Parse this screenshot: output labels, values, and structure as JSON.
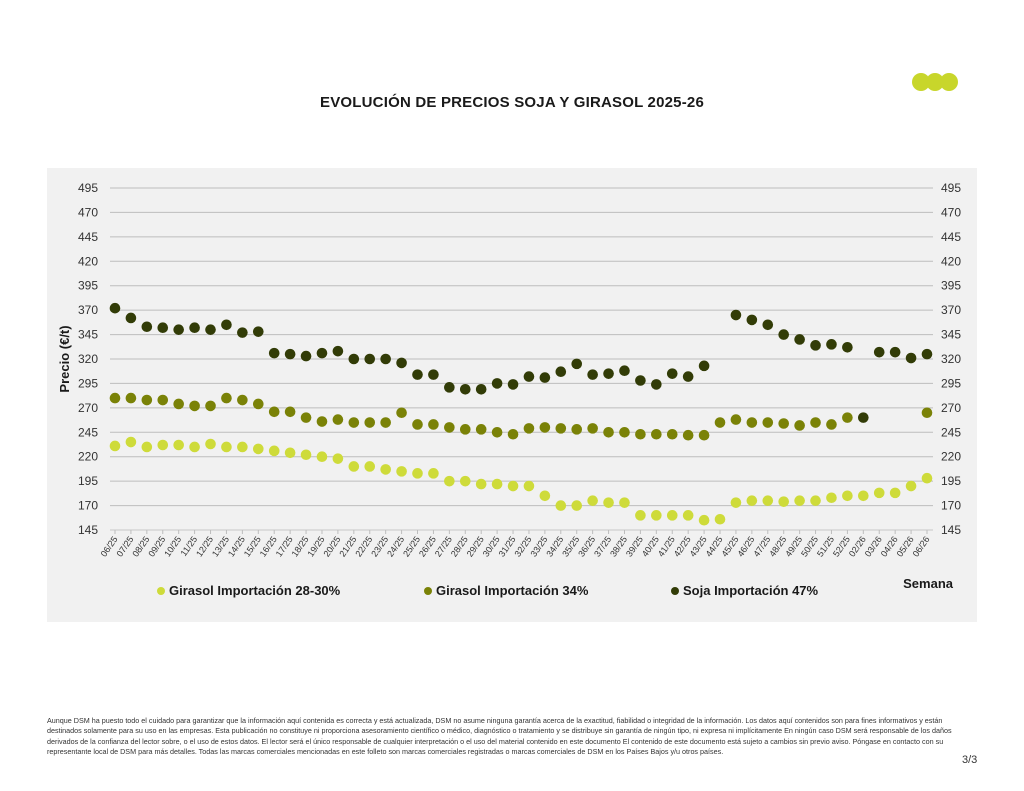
{
  "logo": {
    "name": "DSM logo",
    "color": "#c8d62b"
  },
  "chart_data": {
    "type": "scatter",
    "title": "EVOLUCIÓN DE PRECIOS SOJA Y GIRASOL 2025-26",
    "xlabel": "Semana",
    "ylabel": "Precio (€/t)",
    "ylim": [
      145,
      495
    ],
    "yticks": [
      145,
      170,
      195,
      220,
      245,
      270,
      295,
      320,
      345,
      370,
      395,
      420,
      445,
      470,
      495
    ],
    "grid": true,
    "legend_position": "bottom",
    "categories": [
      "06/25",
      "07/25",
      "08/25",
      "09/25",
      "10/25",
      "11/25",
      "12/25",
      "13/25",
      "14/25",
      "15/25",
      "16/25",
      "17/25",
      "18/25",
      "19/25",
      "20/25",
      "21/25",
      "22/25",
      "23/25",
      "24/25",
      "25/25",
      "26/25",
      "27/25",
      "28/25",
      "29/25",
      "30/25",
      "31/25",
      "32/25",
      "33/25",
      "34/25",
      "35/25",
      "36/25",
      "37/25",
      "38/25",
      "39/25",
      "40/25",
      "41/25",
      "42/25",
      "43/25",
      "44/25",
      "45/25",
      "46/25",
      "47/25",
      "48/25",
      "49/25",
      "50/25",
      "51/25",
      "52/25",
      "02/26",
      "03/26",
      "04/26",
      "05/26",
      "06/26"
    ],
    "series": [
      {
        "name": "Girasol Importación 28-30%",
        "color": "#cedb3a",
        "values": [
          231,
          235,
          230,
          232,
          232,
          230,
          233,
          230,
          230,
          228,
          226,
          224,
          222,
          220,
          218,
          210,
          210,
          207,
          205,
          203,
          203,
          195,
          195,
          192,
          192,
          190,
          190,
          180,
          170,
          170,
          175,
          173,
          173,
          160,
          160,
          160,
          160,
          155,
          156,
          173,
          175,
          175,
          174,
          175,
          175,
          178,
          180,
          180,
          183,
          183,
          190,
          198
        ]
      },
      {
        "name": "Girasol Importación 34%",
        "color": "#7a8207",
        "values": [
          280,
          280,
          278,
          278,
          274,
          272,
          272,
          280,
          278,
          274,
          266,
          266,
          260,
          256,
          258,
          255,
          255,
          255,
          265,
          253,
          253,
          250,
          248,
          248,
          245,
          243,
          249,
          250,
          249,
          248,
          249,
          245,
          245,
          243,
          243,
          243,
          242,
          242,
          255,
          258,
          255,
          255,
          254,
          252,
          255,
          253,
          260,
          null,
          null,
          null,
          null,
          265
        ]
      },
      {
        "name": "Soja Importación 47%",
        "color": "#323c07",
        "values": [
          372,
          362,
          353,
          352,
          350,
          352,
          350,
          355,
          347,
          348,
          326,
          325,
          323,
          326,
          328,
          320,
          320,
          320,
          316,
          304,
          304,
          291,
          289,
          289,
          295,
          294,
          302,
          301,
          307,
          315,
          304,
          305,
          308,
          298,
          294,
          305,
          302,
          313,
          null,
          365,
          360,
          355,
          345,
          340,
          334,
          335,
          332,
          260,
          327,
          327,
          321,
          325
        ]
      }
    ]
  },
  "footer": {
    "disclaimer": "Aunque DSM ha puesto todo el cuidado para garantizar que la información aquí contenida es correcta y está actualizada, DSM no asume ninguna garantía acerca de la exactitud, fiabilidad o integridad de la información. Los datos aquí contenidos son para fines informativos y están destinados solamente para su uso en las empresas. Esta publicación no constituye ni proporciona asesoramiento científico o médico, diagnóstico o tratamiento y se distribuye sin garantía de ningún tipo, ni expresa ni implícitamente En ningún caso DSM será responsable de los daños derivados de la confianza del lector sobre, o el uso de estos datos. El lector será el único responsable de cualquier interpretación o el uso del material contenido en este documento El contenido de este documento está sujeto a cambios sin previo aviso. Póngase en contacto con su representante local de DSM para más detalles. Todas las marcas comerciales mencionadas en este folleto son marcas comerciales registradas o marcas comerciales de DSM en los Países Bajos y/u otros países.",
    "page": "3/3"
  }
}
